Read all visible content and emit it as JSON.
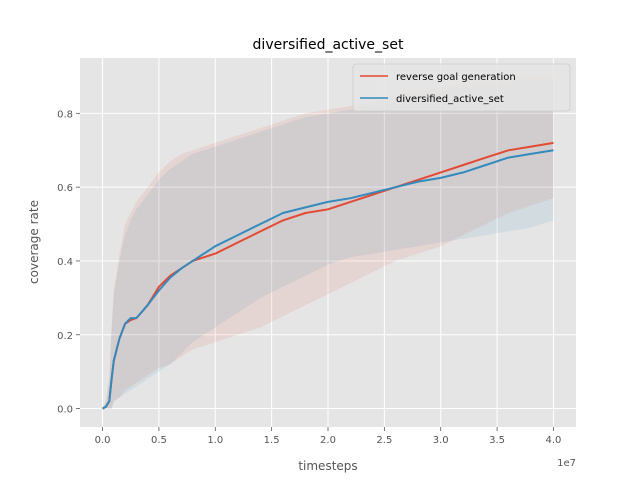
{
  "chart_data": {
    "type": "line",
    "title": "diversified_active_set",
    "xlabel": "timesteps",
    "ylabel": "coverage rate",
    "x_offset_label": "1e7",
    "xlim": [
      -2000000,
      42000000
    ],
    "ylim": [
      -0.05,
      0.95
    ],
    "x_ticks": [
      0,
      5000000,
      10000000,
      15000000,
      20000000,
      25000000,
      30000000,
      35000000,
      40000000
    ],
    "x_tick_labels": [
      "0.0",
      "0.5",
      "1.0",
      "1.5",
      "2.0",
      "2.5",
      "3.0",
      "3.5",
      "4.0"
    ],
    "y_ticks": [
      0.0,
      0.2,
      0.4,
      0.6,
      0.8
    ],
    "y_tick_labels": [
      "0.0",
      "0.2",
      "0.4",
      "0.6",
      "0.8"
    ],
    "grid": true,
    "legend_position": "top-right",
    "series": [
      {
        "name": "reverse goal generation",
        "color": "#E24A33",
        "x": [
          0,
          300000,
          600000,
          800000,
          1000000,
          1500000,
          2000000,
          2500000,
          3000000,
          4000000,
          5000000,
          6000000,
          7000000,
          8000000,
          10000000,
          12000000,
          14000000,
          16000000,
          18000000,
          20000000,
          22000000,
          24000000,
          26000000,
          28000000,
          30000000,
          32000000,
          34000000,
          36000000,
          38000000,
          40000000
        ],
        "y": [
          0.0,
          0.005,
          0.02,
          0.08,
          0.13,
          0.19,
          0.23,
          0.24,
          0.245,
          0.28,
          0.33,
          0.36,
          0.38,
          0.4,
          0.42,
          0.45,
          0.48,
          0.51,
          0.53,
          0.54,
          0.56,
          0.58,
          0.6,
          0.62,
          0.64,
          0.66,
          0.68,
          0.7,
          0.71,
          0.72
        ],
        "band_upper": [
          0.0,
          0.02,
          0.08,
          0.22,
          0.32,
          0.42,
          0.5,
          0.53,
          0.56,
          0.6,
          0.64,
          0.67,
          0.69,
          0.7,
          0.72,
          0.74,
          0.76,
          0.78,
          0.8,
          0.81,
          0.82,
          0.83,
          0.85,
          0.86,
          0.87,
          0.88,
          0.89,
          0.9,
          0.9,
          0.9
        ],
        "band_lower": [
          0.0,
          0.0,
          0.0,
          0.0,
          0.02,
          0.03,
          0.05,
          0.06,
          0.07,
          0.09,
          0.11,
          0.12,
          0.14,
          0.16,
          0.18,
          0.2,
          0.22,
          0.25,
          0.28,
          0.31,
          0.34,
          0.37,
          0.4,
          0.42,
          0.44,
          0.47,
          0.5,
          0.53,
          0.55,
          0.57
        ]
      },
      {
        "name": "diversified_active_set",
        "color": "#348ABD",
        "x": [
          0,
          300000,
          600000,
          800000,
          1000000,
          1500000,
          2000000,
          2500000,
          3000000,
          4000000,
          5000000,
          6000000,
          7000000,
          8000000,
          10000000,
          12000000,
          14000000,
          16000000,
          18000000,
          20000000,
          22000000,
          24000000,
          26000000,
          28000000,
          30000000,
          32000000,
          34000000,
          36000000,
          38000000,
          40000000
        ],
        "y": [
          0.0,
          0.005,
          0.02,
          0.08,
          0.13,
          0.19,
          0.23,
          0.245,
          0.245,
          0.28,
          0.32,
          0.355,
          0.38,
          0.4,
          0.44,
          0.47,
          0.5,
          0.53,
          0.545,
          0.56,
          0.57,
          0.585,
          0.6,
          0.615,
          0.625,
          0.64,
          0.66,
          0.68,
          0.69,
          0.7
        ],
        "band_upper": [
          0.0,
          0.02,
          0.08,
          0.22,
          0.31,
          0.4,
          0.47,
          0.51,
          0.54,
          0.58,
          0.62,
          0.65,
          0.67,
          0.69,
          0.71,
          0.73,
          0.75,
          0.77,
          0.79,
          0.8,
          0.81,
          0.82,
          0.84,
          0.85,
          0.86,
          0.87,
          0.88,
          0.88,
          0.89,
          0.89
        ],
        "band_lower": [
          0.0,
          0.0,
          0.0,
          0.0,
          0.02,
          0.03,
          0.04,
          0.05,
          0.06,
          0.08,
          0.1,
          0.12,
          0.15,
          0.18,
          0.22,
          0.26,
          0.3,
          0.33,
          0.36,
          0.39,
          0.41,
          0.42,
          0.43,
          0.44,
          0.45,
          0.46,
          0.47,
          0.48,
          0.49,
          0.51
        ]
      }
    ]
  }
}
